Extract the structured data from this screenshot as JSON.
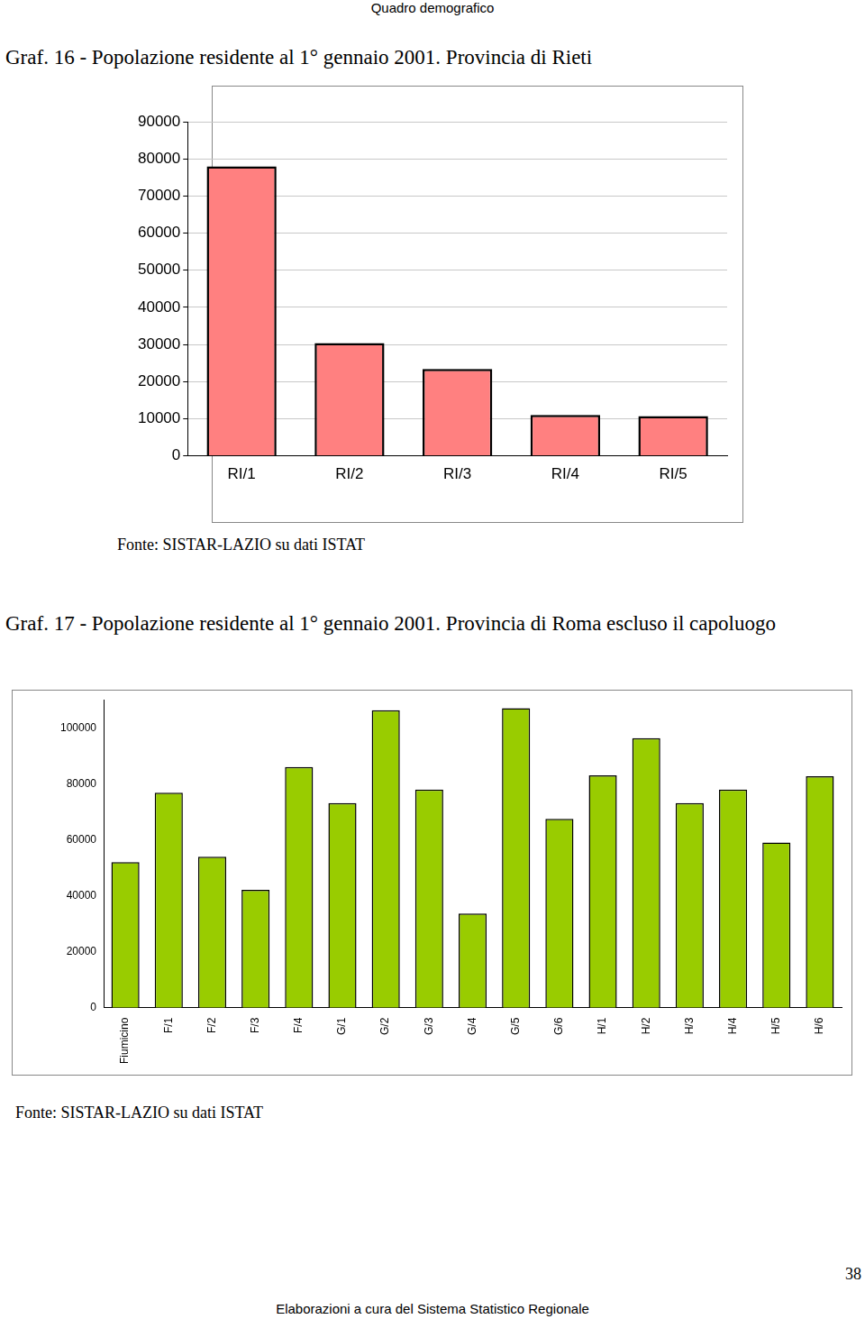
{
  "page": {
    "header": "Quadro demografico",
    "footer": "Elaborazioni a cura del Sistema Statistico Regionale",
    "page_number": 38
  },
  "chart_data": [
    {
      "type": "bar",
      "title": "Graf. 16 - Popolazione residente al 1° gennaio 2001. Provincia di Rieti",
      "annotation": "Fonte: SISTAR-LAZIO su dati ISTAT",
      "categories": [
        "RI/1",
        "RI/2",
        "RI/3",
        "RI/4",
        "RI/5"
      ],
      "values": [
        78000,
        30400,
        23400,
        11000,
        10700
      ],
      "color": "#ff8080",
      "ylim": [
        0,
        90000
      ],
      "yticks": [
        0,
        10000,
        20000,
        30000,
        40000,
        50000,
        60000,
        70000,
        80000,
        90000
      ],
      "grid": true
    },
    {
      "type": "bar",
      "title": "Graf. 17 - Popolazione residente al 1° gennaio 2001. Provincia di Roma escluso il capoluogo",
      "annotation": "Fonte: SISTAR-LAZIO su dati ISTAT",
      "categories": [
        "Fiumicino",
        "F/1",
        "F/2",
        "F/3",
        "F/4",
        "G/1",
        "G/2",
        "G/3",
        "G/4",
        "G/5",
        "G/6",
        "H/1",
        "H/2",
        "H/3",
        "H/4",
        "H/5",
        "H/6"
      ],
      "values": [
        52000,
        76800,
        53900,
        42100,
        86000,
        73100,
        106300,
        77900,
        33600,
        107000,
        67500,
        83000,
        96300,
        73100,
        77900,
        59000,
        82700
      ],
      "color": "#99cc00",
      "ylim": [
        0,
        110000
      ],
      "yticks": [
        0,
        20000,
        40000,
        60000,
        80000,
        100000
      ],
      "grid": false
    }
  ]
}
